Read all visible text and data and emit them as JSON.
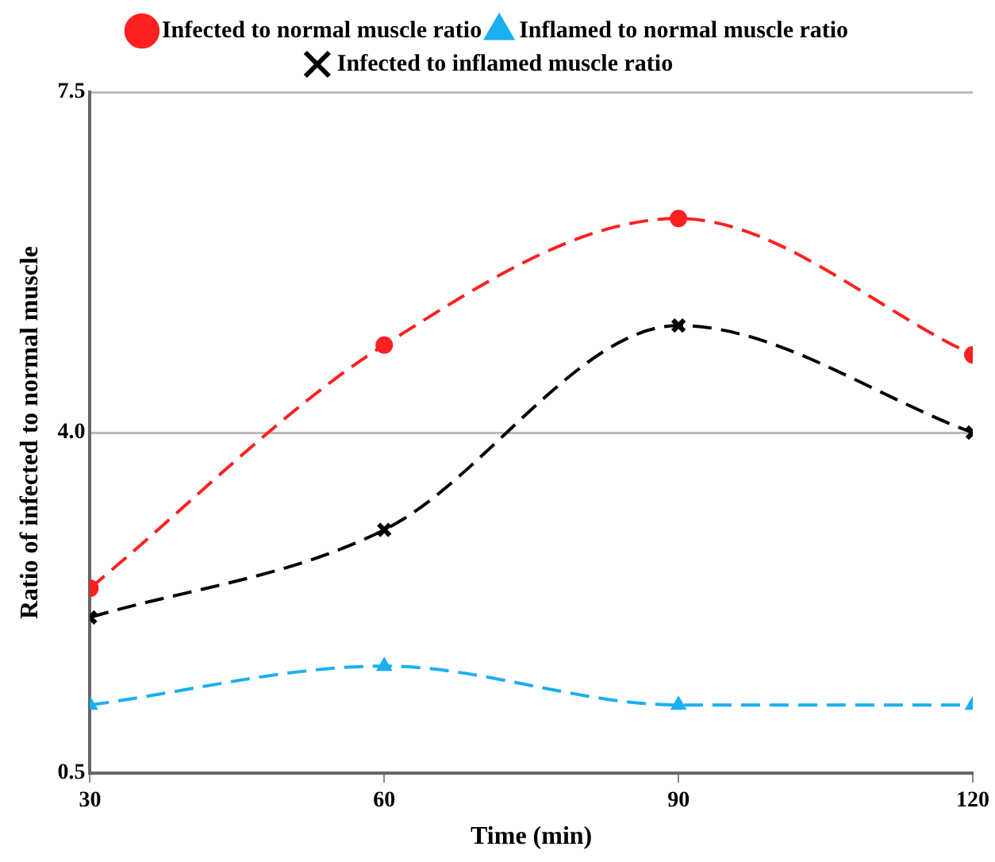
{
  "chart_data": {
    "type": "line",
    "xlabel": "Time (min)",
    "ylabel": "Ratio of infected to normal muscle",
    "x": [
      30,
      60,
      90,
      120
    ],
    "series": [
      {
        "name": "Infected to normal muscle ratio",
        "color": "#ff2020",
        "values": [
          2.4,
          4.9,
          6.2,
          4.8
        ],
        "marker": "circle",
        "line_style": "dashed"
      },
      {
        "name": "Inflamed to normal muscle ratio",
        "color": "#1ab0f0",
        "values": [
          1.2,
          1.6,
          1.2,
          1.2
        ],
        "marker": "triangle",
        "line_style": "dashed"
      },
      {
        "name": "Infected to inflamed muscle ratio",
        "color": "#000000",
        "values": [
          2.1,
          3.0,
          5.1,
          4.0
        ],
        "marker": "cross",
        "line_style": "dashed"
      }
    ],
    "xlim": [
      30,
      120
    ],
    "xticks": [
      30,
      60,
      90,
      120
    ],
    "ylim": [
      0.5,
      7.5
    ],
    "yticks": [
      {
        "value": 0.5,
        "label": "0.5"
      },
      {
        "value": 4,
        "label": "4.0"
      },
      {
        "value": 7.5,
        "label": "7.5"
      }
    ],
    "grid": "y",
    "legend": "top"
  }
}
